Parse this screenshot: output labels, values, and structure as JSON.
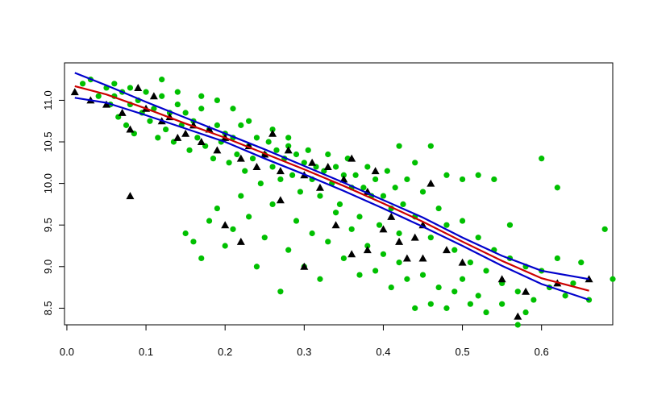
{
  "chart_data": {
    "type": "scatter",
    "title": "",
    "xlabel": "",
    "ylabel": "",
    "xlim": [
      -0.003,
      0.69
    ],
    "ylim": [
      8.3,
      11.45
    ],
    "x_ticks": [
      {
        "value": 0.0,
        "label": "0.0"
      },
      {
        "value": 0.1,
        "label": "0.1"
      },
      {
        "value": 0.2,
        "label": "0.2"
      },
      {
        "value": 0.3,
        "label": "0.3"
      },
      {
        "value": 0.4,
        "label": "0.4"
      },
      {
        "value": 0.5,
        "label": "0.5"
      },
      {
        "value": 0.6,
        "label": "0.6"
      }
    ],
    "y_ticks": [
      {
        "value": 8.5,
        "label": "8.5"
      },
      {
        "value": 9.0,
        "label": "9.0"
      },
      {
        "value": 9.5,
        "label": "9.5"
      },
      {
        "value": 10.0,
        "label": "10.0"
      },
      {
        "value": 10.5,
        "label": "10.5"
      },
      {
        "value": 11.0,
        "label": "11.0"
      }
    ],
    "grid": false,
    "legend": "none",
    "colors": {
      "points_green": "#00c000",
      "points_black": "#000000",
      "fit_line": "#cc0000",
      "band_lines": "#0000cc"
    },
    "series": [
      {
        "kind": "points",
        "marker": "circle",
        "color": "#00c000",
        "points": [
          [
            0.02,
            11.2
          ],
          [
            0.03,
            11.25
          ],
          [
            0.04,
            11.05
          ],
          [
            0.05,
            11.15
          ],
          [
            0.055,
            10.95
          ],
          [
            0.06,
            11.05
          ],
          [
            0.065,
            10.8
          ],
          [
            0.07,
            11.1
          ],
          [
            0.075,
            10.7
          ],
          [
            0.08,
            10.95
          ],
          [
            0.085,
            10.6
          ],
          [
            0.09,
            11.0
          ],
          [
            0.095,
            10.85
          ],
          [
            0.1,
            11.1
          ],
          [
            0.105,
            10.75
          ],
          [
            0.11,
            10.9
          ],
          [
            0.115,
            10.55
          ],
          [
            0.12,
            11.05
          ],
          [
            0.125,
            10.65
          ],
          [
            0.13,
            10.85
          ],
          [
            0.135,
            10.5
          ],
          [
            0.14,
            10.95
          ],
          [
            0.145,
            10.7
          ],
          [
            0.15,
            10.85
          ],
          [
            0.155,
            10.4
          ],
          [
            0.16,
            10.75
          ],
          [
            0.165,
            10.55
          ],
          [
            0.17,
            10.9
          ],
          [
            0.175,
            10.45
          ],
          [
            0.18,
            10.65
          ],
          [
            0.185,
            10.3
          ],
          [
            0.19,
            10.7
          ],
          [
            0.195,
            10.5
          ],
          [
            0.2,
            10.6
          ],
          [
            0.205,
            10.25
          ],
          [
            0.21,
            10.55
          ],
          [
            0.215,
            10.35
          ],
          [
            0.22,
            10.7
          ],
          [
            0.225,
            10.15
          ],
          [
            0.23,
            10.45
          ],
          [
            0.235,
            10.3
          ],
          [
            0.24,
            10.55
          ],
          [
            0.245,
            10.0
          ],
          [
            0.25,
            10.35
          ],
          [
            0.255,
            10.5
          ],
          [
            0.26,
            10.2
          ],
          [
            0.265,
            10.4
          ],
          [
            0.27,
            10.05
          ],
          [
            0.275,
            10.3
          ],
          [
            0.28,
            10.45
          ],
          [
            0.285,
            10.1
          ],
          [
            0.29,
            10.35
          ],
          [
            0.295,
            9.9
          ],
          [
            0.3,
            10.25
          ],
          [
            0.305,
            10.4
          ],
          [
            0.31,
            10.05
          ],
          [
            0.315,
            10.2
          ],
          [
            0.32,
            9.85
          ],
          [
            0.325,
            10.15
          ],
          [
            0.33,
            10.35
          ],
          [
            0.335,
            10.0
          ],
          [
            0.34,
            10.2
          ],
          [
            0.345,
            9.75
          ],
          [
            0.35,
            10.1
          ],
          [
            0.355,
            10.3
          ],
          [
            0.36,
            9.95
          ],
          [
            0.365,
            10.1
          ],
          [
            0.37,
            9.6
          ],
          [
            0.375,
            9.95
          ],
          [
            0.38,
            10.2
          ],
          [
            0.385,
            9.85
          ],
          [
            0.39,
            10.05
          ],
          [
            0.395,
            9.5
          ],
          [
            0.4,
            9.85
          ],
          [
            0.405,
            10.15
          ],
          [
            0.41,
            9.7
          ],
          [
            0.415,
            9.95
          ],
          [
            0.42,
            9.4
          ],
          [
            0.425,
            9.75
          ],
          [
            0.43,
            10.05
          ],
          [
            0.44,
            9.6
          ],
          [
            0.45,
            9.9
          ],
          [
            0.46,
            9.35
          ],
          [
            0.47,
            9.7
          ],
          [
            0.48,
            9.5
          ],
          [
            0.49,
            9.2
          ],
          [
            0.5,
            9.55
          ],
          [
            0.51,
            9.05
          ],
          [
            0.52,
            9.35
          ],
          [
            0.53,
            8.95
          ],
          [
            0.54,
            9.2
          ],
          [
            0.55,
            8.8
          ],
          [
            0.56,
            9.1
          ],
          [
            0.57,
            8.7
          ],
          [
            0.58,
            9.0
          ],
          [
            0.59,
            8.6
          ],
          [
            0.6,
            8.95
          ],
          [
            0.61,
            8.75
          ],
          [
            0.62,
            9.1
          ],
          [
            0.63,
            8.65
          ],
          [
            0.64,
            8.8
          ],
          [
            0.65,
            9.05
          ],
          [
            0.66,
            8.6
          ],
          [
            0.68,
            9.45
          ],
          [
            0.69,
            8.85
          ],
          [
            0.15,
            9.4
          ],
          [
            0.16,
            9.3
          ],
          [
            0.17,
            9.1
          ],
          [
            0.18,
            9.55
          ],
          [
            0.19,
            9.7
          ],
          [
            0.2,
            9.25
          ],
          [
            0.21,
            9.45
          ],
          [
            0.22,
            9.85
          ],
          [
            0.23,
            9.6
          ],
          [
            0.24,
            9.0
          ],
          [
            0.25,
            9.35
          ],
          [
            0.26,
            9.75
          ],
          [
            0.27,
            8.7
          ],
          [
            0.28,
            9.2
          ],
          [
            0.29,
            9.55
          ],
          [
            0.3,
            9.0
          ],
          [
            0.31,
            9.4
          ],
          [
            0.32,
            8.85
          ],
          [
            0.33,
            9.3
          ],
          [
            0.34,
            9.65
          ],
          [
            0.35,
            9.1
          ],
          [
            0.36,
            9.45
          ],
          [
            0.37,
            8.9
          ],
          [
            0.38,
            9.25
          ],
          [
            0.39,
            8.95
          ],
          [
            0.4,
            9.15
          ],
          [
            0.41,
            8.75
          ],
          [
            0.42,
            9.05
          ],
          [
            0.43,
            8.85
          ],
          [
            0.44,
            8.5
          ],
          [
            0.45,
            8.9
          ],
          [
            0.46,
            8.55
          ],
          [
            0.47,
            8.75
          ],
          [
            0.48,
            8.5
          ],
          [
            0.49,
            8.7
          ],
          [
            0.5,
            8.85
          ],
          [
            0.51,
            8.55
          ],
          [
            0.52,
            8.65
          ],
          [
            0.53,
            8.45
          ],
          [
            0.55,
            8.55
          ],
          [
            0.57,
            8.3
          ],
          [
            0.58,
            8.45
          ],
          [
            0.42,
            10.45
          ],
          [
            0.44,
            10.25
          ],
          [
            0.46,
            10.45
          ],
          [
            0.48,
            10.1
          ],
          [
            0.5,
            10.05
          ],
          [
            0.52,
            10.1
          ],
          [
            0.54,
            10.05
          ],
          [
            0.6,
            10.3
          ],
          [
            0.62,
            9.95
          ],
          [
            0.56,
            9.5
          ],
          [
            0.06,
            11.2
          ],
          [
            0.08,
            11.15
          ],
          [
            0.12,
            11.25
          ],
          [
            0.14,
            11.1
          ],
          [
            0.17,
            11.05
          ],
          [
            0.19,
            11.0
          ],
          [
            0.21,
            10.9
          ],
          [
            0.23,
            10.75
          ],
          [
            0.26,
            10.65
          ],
          [
            0.28,
            10.55
          ]
        ]
      },
      {
        "kind": "points",
        "marker": "triangle",
        "color": "#000000",
        "points": [
          [
            0.01,
            11.1
          ],
          [
            0.03,
            11.0
          ],
          [
            0.05,
            10.95
          ],
          [
            0.07,
            10.85
          ],
          [
            0.08,
            10.65
          ],
          [
            0.09,
            11.15
          ],
          [
            0.1,
            10.9
          ],
          [
            0.11,
            11.05
          ],
          [
            0.12,
            10.75
          ],
          [
            0.13,
            10.8
          ],
          [
            0.14,
            10.55
          ],
          [
            0.15,
            10.6
          ],
          [
            0.16,
            10.7
          ],
          [
            0.17,
            10.5
          ],
          [
            0.18,
            10.65
          ],
          [
            0.19,
            10.4
          ],
          [
            0.2,
            10.55
          ],
          [
            0.22,
            10.3
          ],
          [
            0.23,
            10.45
          ],
          [
            0.24,
            10.2
          ],
          [
            0.25,
            10.35
          ],
          [
            0.26,
            10.6
          ],
          [
            0.27,
            10.15
          ],
          [
            0.28,
            10.4
          ],
          [
            0.3,
            10.1
          ],
          [
            0.31,
            10.25
          ],
          [
            0.32,
            9.95
          ],
          [
            0.33,
            10.2
          ],
          [
            0.35,
            10.05
          ],
          [
            0.36,
            10.3
          ],
          [
            0.38,
            9.9
          ],
          [
            0.39,
            10.15
          ],
          [
            0.4,
            9.45
          ],
          [
            0.41,
            9.6
          ],
          [
            0.42,
            9.3
          ],
          [
            0.43,
            9.1
          ],
          [
            0.44,
            9.35
          ],
          [
            0.45,
            9.1
          ],
          [
            0.46,
            10.0
          ],
          [
            0.48,
            9.2
          ],
          [
            0.5,
            9.05
          ],
          [
            0.55,
            8.85
          ],
          [
            0.57,
            8.4
          ],
          [
            0.58,
            8.7
          ],
          [
            0.62,
            8.8
          ],
          [
            0.66,
            8.85
          ],
          [
            0.08,
            9.85
          ],
          [
            0.2,
            9.5
          ],
          [
            0.22,
            9.3
          ],
          [
            0.27,
            9.8
          ],
          [
            0.3,
            9.0
          ],
          [
            0.36,
            9.15
          ],
          [
            0.38,
            9.2
          ],
          [
            0.45,
            9.5
          ],
          [
            0.34,
            9.5
          ]
        ]
      },
      {
        "kind": "line",
        "name": "",
        "color": "#cc0000",
        "x": [
          0.01,
          0.05,
          0.1,
          0.15,
          0.2,
          0.25,
          0.3,
          0.35,
          0.4,
          0.45,
          0.5,
          0.55,
          0.6,
          0.66
        ],
        "y": [
          11.17,
          11.07,
          10.9,
          10.72,
          10.55,
          10.36,
          10.17,
          9.97,
          9.76,
          9.54,
          9.3,
          9.07,
          8.86,
          8.71
        ]
      },
      {
        "kind": "line",
        "name": "",
        "color": "#0000cc",
        "x": [
          0.01,
          0.05,
          0.1,
          0.15,
          0.2,
          0.25,
          0.3,
          0.35,
          0.4,
          0.45,
          0.5,
          0.55,
          0.6,
          0.66
        ],
        "y": [
          11.33,
          11.18,
          10.98,
          10.79,
          10.6,
          10.41,
          10.21,
          10.01,
          9.8,
          9.59,
          9.35,
          9.13,
          8.95,
          8.85
        ]
      },
      {
        "kind": "line",
        "name": "",
        "color": "#0000cc",
        "x": [
          0.01,
          0.05,
          0.1,
          0.15,
          0.2,
          0.25,
          0.3,
          0.35,
          0.4,
          0.45,
          0.5,
          0.55,
          0.6,
          0.66
        ],
        "y": [
          11.03,
          10.97,
          10.82,
          10.66,
          10.5,
          10.3,
          10.11,
          9.91,
          9.7,
          9.48,
          9.25,
          9.01,
          8.79,
          8.6
        ]
      }
    ]
  }
}
